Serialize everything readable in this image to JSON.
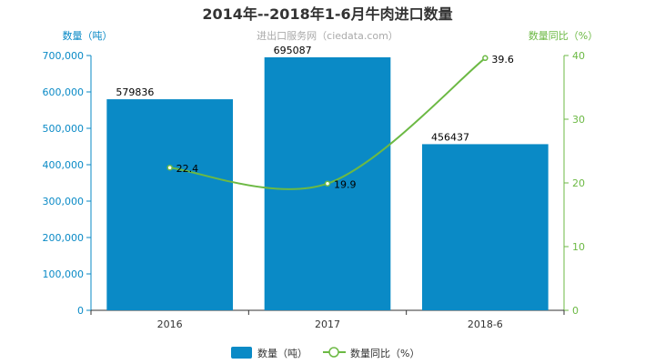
{
  "chart_data": {
    "type": "bar+line",
    "title": "2014年--2018年1-6月牛肉进口数量",
    "subtitle": "进出口服务网（ciedata.com）",
    "categories": [
      "2016",
      "2017",
      "2018-6"
    ],
    "series": [
      {
        "name": "数量（吨）",
        "type": "bar",
        "axis": "left",
        "values": [
          579836,
          695087,
          456437
        ],
        "data_labels": [
          "579836",
          "695087",
          "456437"
        ],
        "color": "#0a8ac6"
      },
      {
        "name": "数量同比（%）",
        "type": "line",
        "axis": "right",
        "values": [
          22.4,
          19.9,
          39.6
        ],
        "data_labels": [
          "22.4",
          "19.9",
          "39.6"
        ],
        "color": "#6cb944"
      }
    ],
    "ylabel": "数量（吨）",
    "y2label": "数量同比（%）",
    "ylim": [
      0,
      700000
    ],
    "y2lim": [
      0,
      40
    ],
    "yticks": [
      "0",
      "100,000",
      "200,000",
      "300,000",
      "400,000",
      "500,000",
      "600,000",
      "700,000"
    ],
    "y2ticks": [
      "0",
      "10",
      "20",
      "30",
      "40"
    ],
    "grid": false,
    "legend_position": "bottom"
  }
}
